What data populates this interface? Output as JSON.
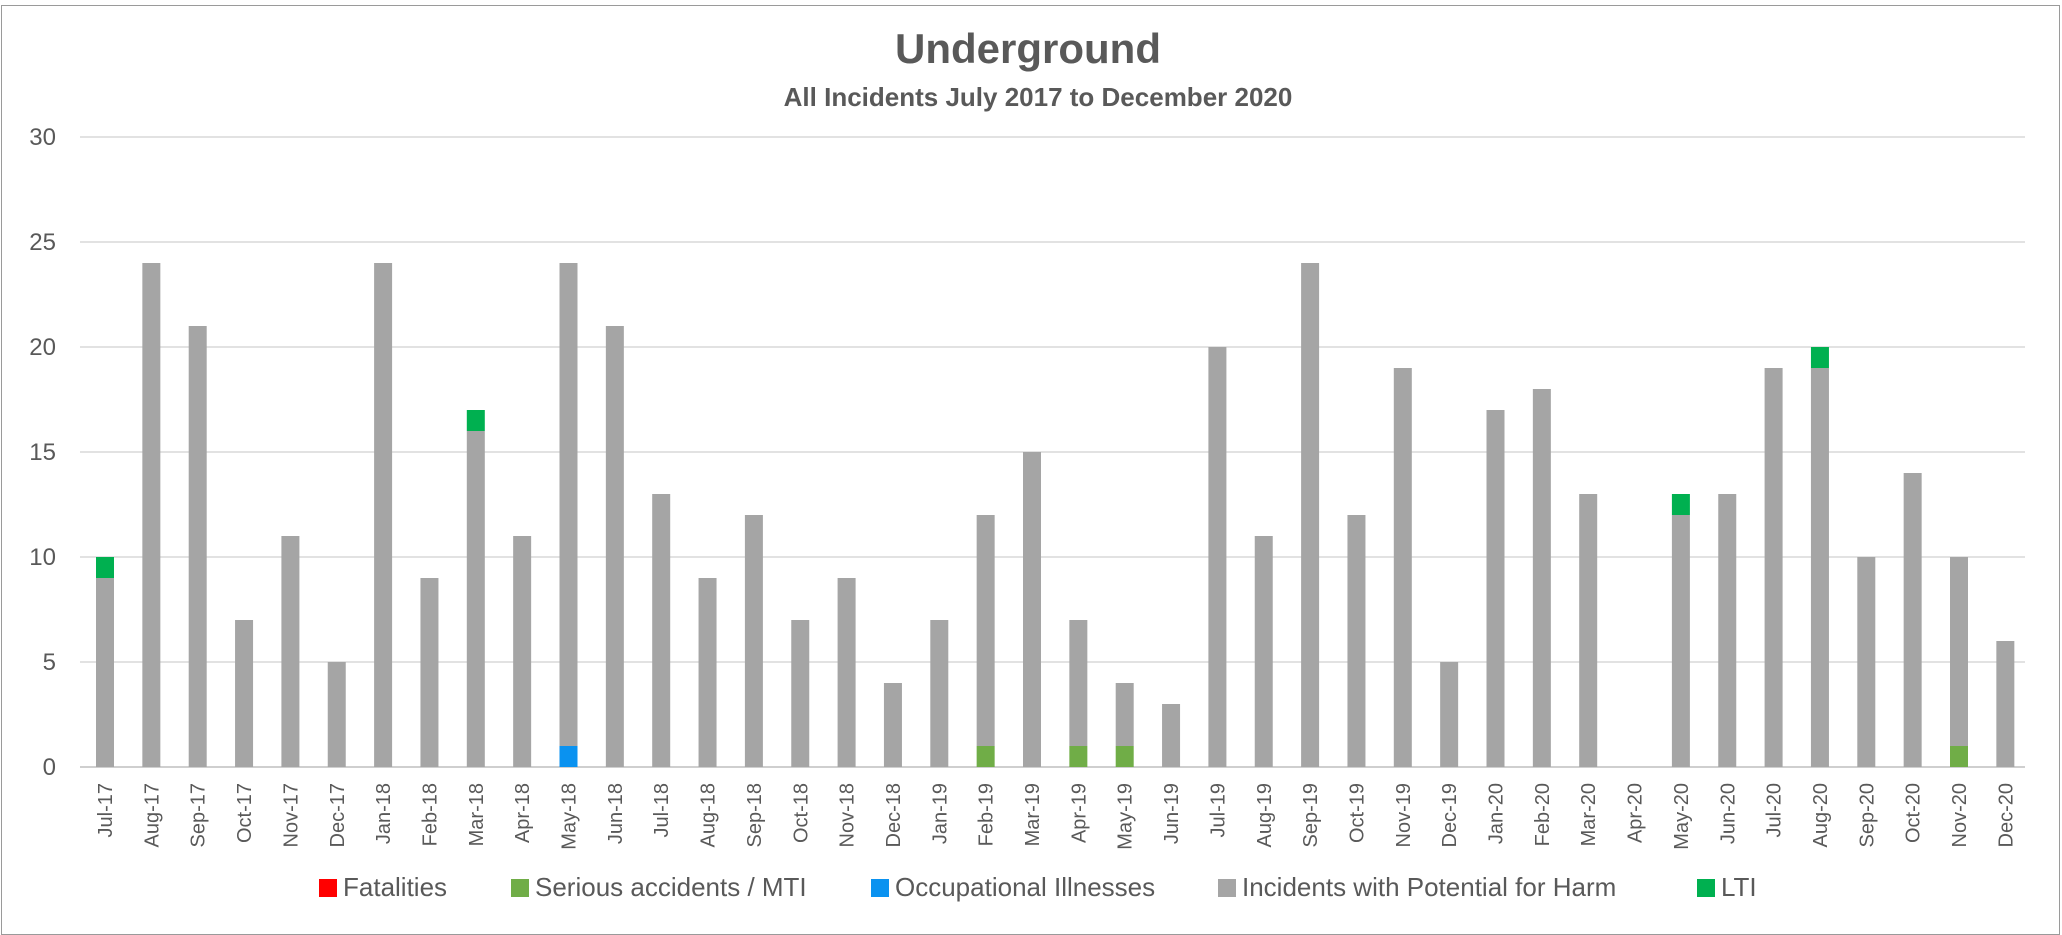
{
  "chart_data": {
    "type": "bar",
    "stacked": true,
    "title": "Underground",
    "subtitle": "All Incidents July 2017 to December 2020",
    "xlabel": "",
    "ylabel": "",
    "ylim": [
      0,
      30
    ],
    "yticks": [
      0,
      5,
      10,
      15,
      20,
      25,
      30
    ],
    "grid": true,
    "legend_position": "bottom",
    "categories": [
      "Jul-17",
      "Aug-17",
      "Sep-17",
      "Oct-17",
      "Nov-17",
      "Dec-17",
      "Jan-18",
      "Feb-18",
      "Mar-18",
      "Apr-18",
      "May-18",
      "Jun-18",
      "Jul-18",
      "Aug-18",
      "Sep-18",
      "Oct-18",
      "Nov-18",
      "Dec-18",
      "Jan-19",
      "Feb-19",
      "Mar-19",
      "Apr-19",
      "May-19",
      "Jun-19",
      "Jul-19",
      "Aug-19",
      "Sep-19",
      "Oct-19",
      "Nov-19",
      "Dec-19",
      "Jan-20",
      "Feb-20",
      "Mar-20",
      "Apr-20",
      "May-20",
      "Jun-20",
      "Jul-20",
      "Aug-20",
      "Sep-20",
      "Oct-20",
      "Nov-20",
      "Dec-20"
    ],
    "series": [
      {
        "name": "Fatalities",
        "color": "#ff0000",
        "values": [
          0,
          0,
          0,
          0,
          0,
          0,
          0,
          0,
          0,
          0,
          0,
          0,
          0,
          0,
          0,
          0,
          0,
          0,
          0,
          0,
          0,
          0,
          0,
          0,
          0,
          0,
          0,
          0,
          0,
          0,
          0,
          0,
          0,
          0,
          0,
          0,
          0,
          0,
          0,
          0,
          0,
          0
        ]
      },
      {
        "name": "Serious accidents / MTI",
        "color": "#70ad47",
        "values": [
          0,
          0,
          0,
          0,
          0,
          0,
          0,
          0,
          0,
          0,
          0,
          0,
          0,
          0,
          0,
          0,
          0,
          0,
          0,
          1,
          0,
          1,
          1,
          0,
          0,
          0,
          0,
          0,
          0,
          0,
          0,
          0,
          0,
          0,
          0,
          0,
          0,
          0,
          0,
          0,
          1,
          0
        ]
      },
      {
        "name": "Occupational Illnesses",
        "color": "#0a92f0",
        "values": [
          0,
          0,
          0,
          0,
          0,
          0,
          0,
          0,
          0,
          0,
          1,
          0,
          0,
          0,
          0,
          0,
          0,
          0,
          0,
          0,
          0,
          0,
          0,
          0,
          0,
          0,
          0,
          0,
          0,
          0,
          0,
          0,
          0,
          0,
          0,
          0,
          0,
          0,
          0,
          0,
          0,
          0
        ]
      },
      {
        "name": "Incidents with Potential for Harm",
        "color": "#a5a5a5",
        "values": [
          9,
          24,
          21,
          7,
          11,
          5,
          24,
          9,
          16,
          11,
          23,
          21,
          13,
          9,
          12,
          7,
          9,
          4,
          7,
          11,
          15,
          6,
          3,
          3,
          20,
          11,
          24,
          12,
          19,
          5,
          17,
          18,
          13,
          0,
          12,
          13,
          19,
          19,
          10,
          14,
          9,
          6
        ]
      },
      {
        "name": "LTI",
        "color": "#00b050",
        "values": [
          1,
          0,
          0,
          0,
          0,
          0,
          0,
          0,
          1,
          0,
          0,
          0,
          0,
          0,
          0,
          0,
          0,
          0,
          0,
          0,
          0,
          0,
          0,
          0,
          0,
          0,
          0,
          0,
          0,
          0,
          0,
          0,
          0,
          0,
          1,
          0,
          0,
          1,
          0,
          0,
          0,
          0
        ]
      }
    ]
  }
}
